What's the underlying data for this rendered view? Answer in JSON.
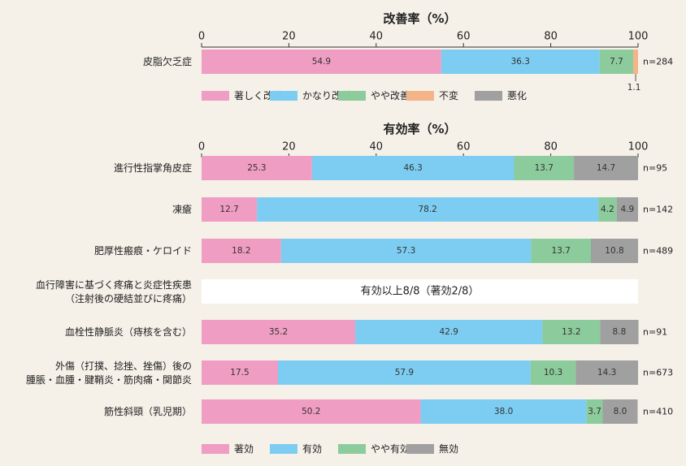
{
  "chart_data": [
    {
      "type": "bar",
      "orientation": "horizontal-stacked",
      "title": "改善率（%）",
      "xlim": [
        0,
        100
      ],
      "ticks": [
        "0",
        "20",
        "40",
        "60",
        "80",
        "100"
      ],
      "categories": [
        "皮脂欠乏症"
      ],
      "n_labels": [
        "n=284"
      ],
      "series": [
        {
          "name": "著しく改善",
          "color": "#f09dc3",
          "values": [
            54.9
          ],
          "labels": [
            "54.9"
          ]
        },
        {
          "name": "かなり改善",
          "color": "#7dcdf2",
          "values": [
            36.3
          ],
          "labels": [
            "36.3"
          ]
        },
        {
          "name": "やや改善",
          "color": "#8ccb9b",
          "values": [
            7.7
          ],
          "labels": [
            "7.7"
          ]
        },
        {
          "name": "不変",
          "color": "#f5b487",
          "values": [
            1.1
          ],
          "labels": [
            "1.1"
          ]
        },
        {
          "name": "悪化",
          "color": "#a0a0a0",
          "values": [
            0
          ],
          "labels": [
            ""
          ]
        }
      ],
      "legend_position": "below"
    },
    {
      "type": "bar",
      "orientation": "horizontal-stacked",
      "title": "有効率（%）",
      "xlim": [
        0,
        100
      ],
      "ticks": [
        "0",
        "20",
        "40",
        "60",
        "80",
        "100"
      ],
      "categories": [
        "進行性指掌角皮症",
        "凍瘡",
        "肥厚性瘢痕・ケロイド",
        "血行障害に基づく疼痛と炎症性疾患",
        "血栓性静脈炎（痔核を含む）",
        "外傷（打撲、捻挫、挫傷）後の",
        "筋性斜頸（乳児期）"
      ],
      "category_line2": [
        "",
        "",
        "",
        "（注射後の硬結並びに疼痛）",
        "",
        "腫脹・血腫・腱鞘炎・筋肉痛・関節炎",
        ""
      ],
      "n_labels": [
        "n=95",
        "n=142",
        "n=489",
        "",
        "n=91",
        "n=673",
        "n=410"
      ],
      "notes": [
        "",
        "",
        "",
        "有効以上8/8（著効2/8）",
        "",
        "",
        ""
      ],
      "series": [
        {
          "name": "著効",
          "color": "#f09dc3",
          "values": [
            25.3,
            12.7,
            18.2,
            0,
            35.2,
            17.5,
            50.2
          ],
          "labels": [
            "25.3",
            "12.7",
            "18.2",
            "",
            "35.2",
            "17.5",
            "50.2"
          ]
        },
        {
          "name": "有効",
          "color": "#7dcdf2",
          "values": [
            46.3,
            78.2,
            57.3,
            0,
            42.9,
            57.9,
            38.0
          ],
          "labels": [
            "46.3",
            "78.2",
            "57.3",
            "",
            "42.9",
            "57.9",
            "38.0"
          ]
        },
        {
          "name": "やや有効",
          "color": "#8ccb9b",
          "values": [
            13.7,
            4.2,
            13.7,
            0,
            13.2,
            10.3,
            3.7
          ],
          "labels": [
            "13.7",
            "4.2",
            "13.7",
            "",
            "13.2",
            "10.3",
            "3.7"
          ]
        },
        {
          "name": "無効",
          "color": "#a0a0a0",
          "values": [
            14.7,
            4.9,
            10.8,
            0,
            8.8,
            14.3,
            8.0
          ],
          "labels": [
            "14.7",
            "4.9",
            "10.8",
            "",
            "8.8",
            "14.3",
            "8.0"
          ]
        }
      ],
      "legend_position": "below"
    }
  ]
}
